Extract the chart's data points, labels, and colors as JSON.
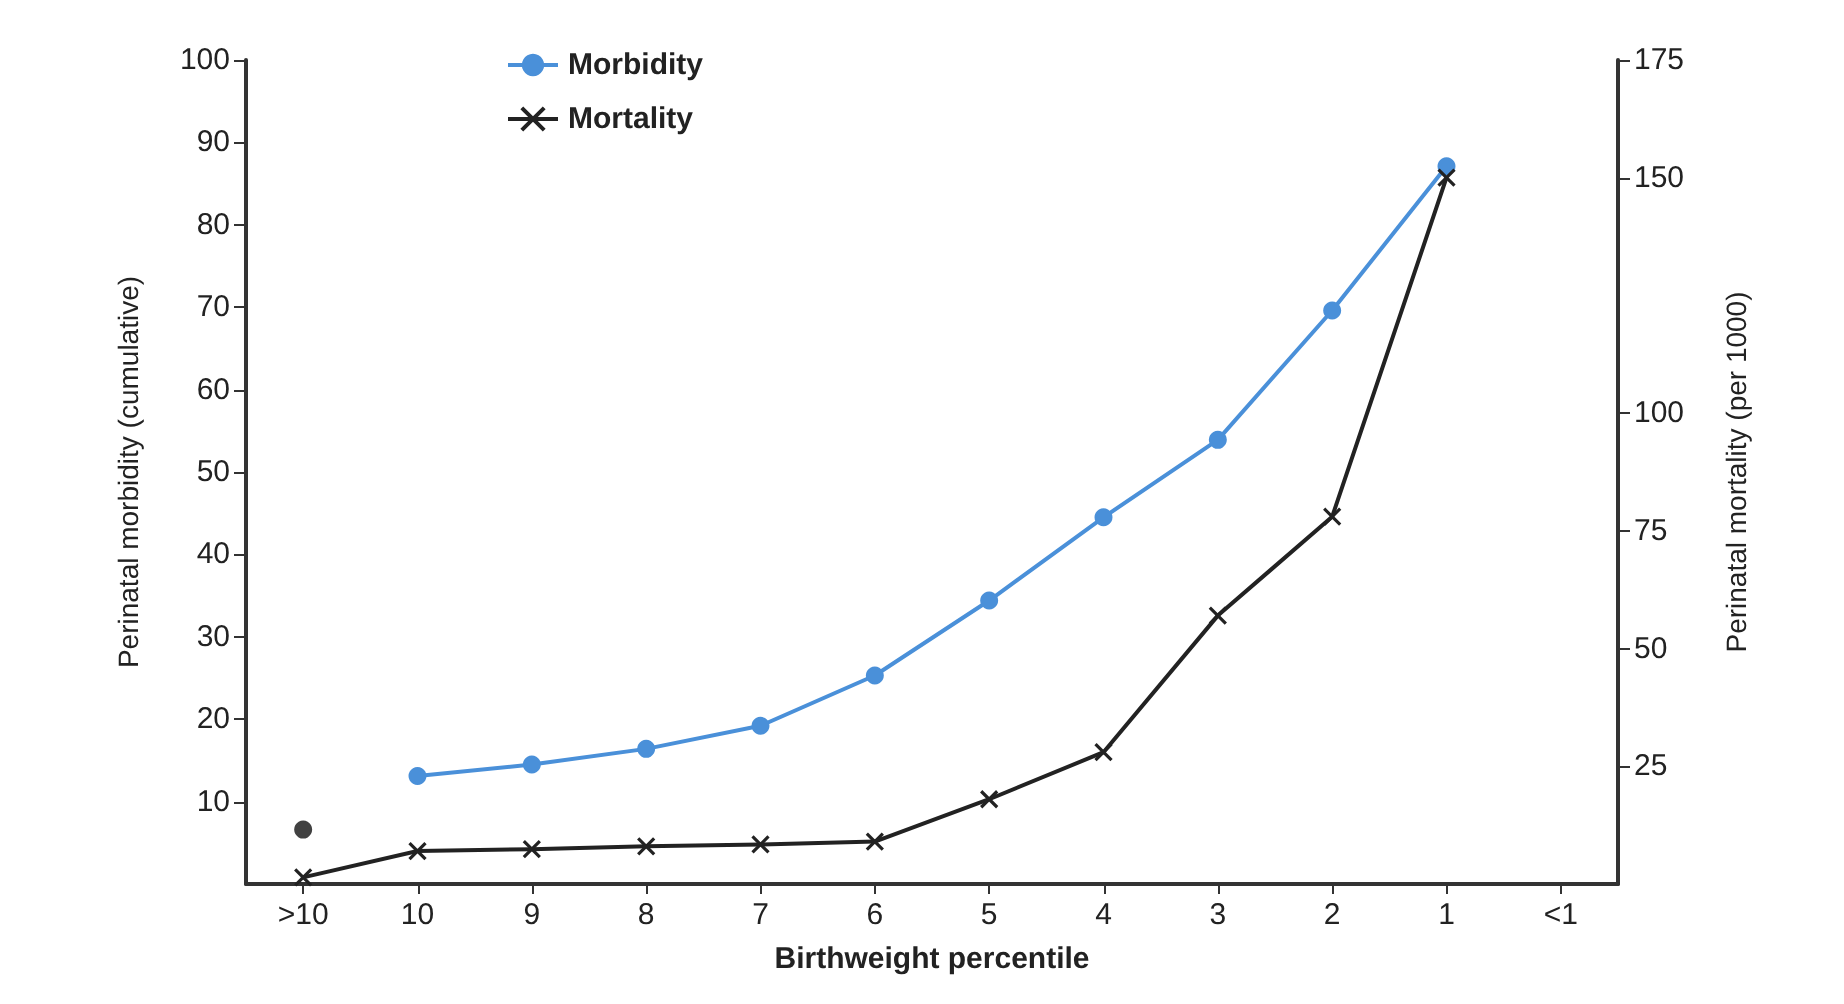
{
  "chart_data": {
    "type": "line",
    "xlabel": "Birthweight percentile",
    "ylabel": "Perinatal morbidity (cumulative)",
    "y2label": "Perinatal mortality (per 1000)",
    "categories": [
      ">10",
      "10",
      "9",
      "8",
      "7",
      "6",
      "5",
      "4",
      "3",
      "2",
      "1",
      "<1"
    ],
    "series": [
      {
        "name": "Morbidity",
        "color": "#4a90d9",
        "marker": "circle",
        "values": [
          null,
          13.1,
          14.5,
          16.4,
          19.2,
          25.3,
          34.4,
          44.5,
          53.9,
          69.6,
          87.1,
          null
        ]
      },
      {
        "name": "Mortality",
        "color": "#222222",
        "marker": "cross",
        "axis": "y2",
        "values": [
          1.4,
          7,
          7.4,
          8,
          8.4,
          9,
          18,
          28,
          57,
          78,
          150,
          null
        ]
      },
      {
        "type": "scatter",
        "color": "#111111",
        "marker": "circle",
        "values": [
          6.6,
          null,
          null,
          null,
          null,
          null,
          null,
          null,
          null,
          null,
          null,
          null
        ]
      }
    ],
    "ylim": [
      0,
      100
    ],
    "yticks": [
      10,
      20,
      30,
      40,
      50,
      60,
      70,
      80,
      90,
      100
    ],
    "y2lim": [
      0,
      175
    ],
    "y2ticks": [
      25,
      50,
      75,
      100,
      150,
      175
    ],
    "grid": false,
    "legend": "top"
  }
}
